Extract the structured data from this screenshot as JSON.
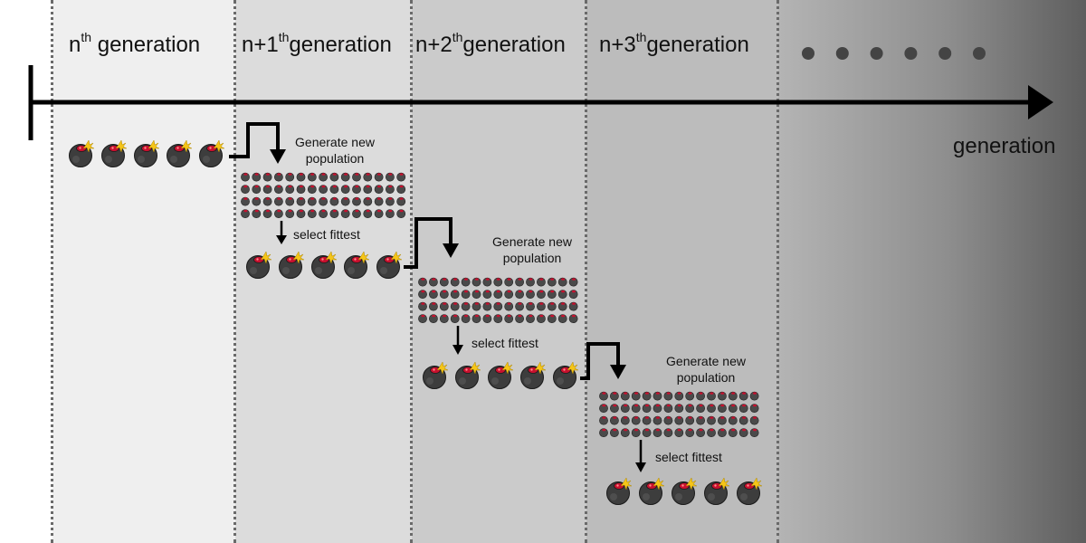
{
  "generations": [
    {
      "prefix": "n",
      "sup": "th",
      "word": " generation"
    },
    {
      "prefix": "n+1",
      "sup": "th",
      "word": "generation"
    },
    {
      "prefix": "n+2",
      "sup": "th",
      "word": "generation"
    },
    {
      "prefix": "n+3",
      "sup": "th",
      "word": "generation"
    }
  ],
  "axis_label": "generation",
  "ellipsis_dots": 6,
  "steps": [
    {
      "generate_line1": "Generate new",
      "generate_line2": "population",
      "select_label": "select fittest"
    },
    {
      "generate_line1": "Generate new",
      "generate_line2": "population",
      "select_label": "select fittest"
    },
    {
      "generate_line1": "Generate new",
      "generate_line2": "population",
      "select_label": "select fittest"
    }
  ],
  "individuals_per_selection": 5,
  "population_rows": 4,
  "colors": {
    "bomb_body": "#3d3d3d",
    "bomb_highlight": "#6e6e6e",
    "bomb_cap": "#c8102e",
    "bomb_spark": "#f5c518",
    "axis": "#000000",
    "ellipsis": "#444444"
  },
  "icons": {
    "individual": "bomb-icon",
    "generate_arrow": "step-arrow-icon",
    "select_arrow": "down-arrow-icon"
  }
}
